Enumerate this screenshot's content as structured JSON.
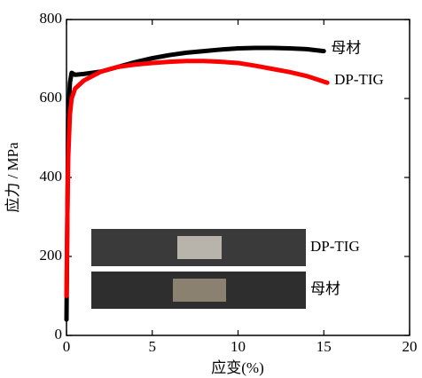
{
  "chart_data": {
    "type": "line",
    "x_label": "应变(%)",
    "y_label": "应力 / MPa",
    "xlim": [
      0,
      20
    ],
    "xticks": [
      0,
      5,
      10,
      15,
      20
    ],
    "ylim": [
      0,
      800
    ],
    "yticks": [
      0,
      200,
      400,
      600,
      800
    ],
    "series": [
      {
        "name": "母材",
        "color": "#000000",
        "x": [
          0,
          0.05,
          0.1,
          0.2,
          0.3,
          0.5,
          1,
          2,
          3,
          4,
          5,
          6,
          7,
          8,
          9,
          10,
          11,
          12,
          13,
          14,
          15
        ],
        "values": [
          40,
          300,
          550,
          640,
          665,
          660,
          662,
          668,
          680,
          692,
          702,
          710,
          716,
          720,
          724,
          727,
          728,
          728,
          727,
          725,
          720
        ]
      },
      {
        "name": "DP-TIG",
        "color": "#ff0000",
        "x": [
          0,
          0.05,
          0.1,
          0.2,
          0.3,
          0.5,
          1,
          2,
          3,
          4,
          5,
          6,
          7,
          8,
          9,
          10,
          11,
          12,
          13,
          14,
          15.2
        ],
        "values": [
          100,
          300,
          450,
          560,
          600,
          625,
          645,
          668,
          680,
          686,
          690,
          693,
          695,
          695,
          693,
          690,
          683,
          675,
          667,
          657,
          640
        ]
      }
    ]
  }
}
